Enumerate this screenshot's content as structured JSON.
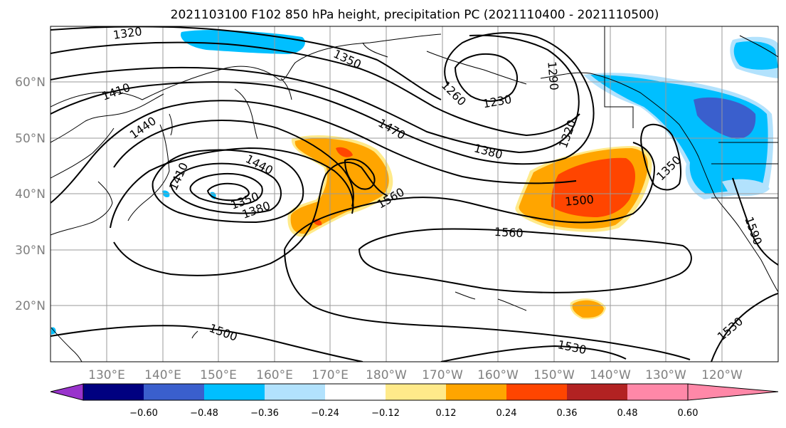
{
  "title": "2021103100 F102 850 hPa height, precipitation PC (2021110400 - 2021110500)",
  "map": {
    "extent": {
      "lon_west": 120,
      "lon_east": 250,
      "lat_south": 10,
      "lat_north": 70
    },
    "lat_ticks": [
      {
        "value": 20,
        "label": "20°N"
      },
      {
        "value": 30,
        "label": "30°N"
      },
      {
        "value": 40,
        "label": "40°N"
      },
      {
        "value": 50,
        "label": "50°N"
      },
      {
        "value": 60,
        "label": "60°N"
      }
    ],
    "lon_ticks": [
      {
        "value": 130,
        "label": "130°E"
      },
      {
        "value": 140,
        "label": "140°E"
      },
      {
        "value": 150,
        "label": "150°E"
      },
      {
        "value": 160,
        "label": "160°E"
      },
      {
        "value": 170,
        "label": "170°E"
      },
      {
        "value": 180,
        "label": "180°W"
      },
      {
        "value": 190,
        "label": "170°W"
      },
      {
        "value": 200,
        "label": "160°W"
      },
      {
        "value": 210,
        "label": "150°W"
      },
      {
        "value": 220,
        "label": "140°W"
      },
      {
        "value": 230,
        "label": "130°W"
      },
      {
        "value": 240,
        "label": "120°W"
      }
    ],
    "grid": true,
    "contour_labels": [
      "1320",
      "1350",
      "1410",
      "1440",
      "1470",
      "1260",
      "1230",
      "1290",
      "1380",
      "1320",
      "1440",
      "1410",
      "1350",
      "1380",
      "1560",
      "1500",
      "1560",
      "1350",
      "1500",
      "1530",
      "1530",
      "1590"
    ]
  },
  "colorbar": {
    "colors": [
      "#9933cc",
      "#000080",
      "#3a5fcd",
      "#00bfff",
      "#b2e2fd",
      "#ffffff",
      "#ffea8a",
      "#ffa500",
      "#ff4500",
      "#b22222",
      "#ff88a8"
    ],
    "ticks": [
      "−0.60",
      "−0.48",
      "−0.36",
      "−0.24",
      "−0.12",
      "0.12",
      "0.24",
      "0.36",
      "0.48",
      "0.60"
    ]
  }
}
